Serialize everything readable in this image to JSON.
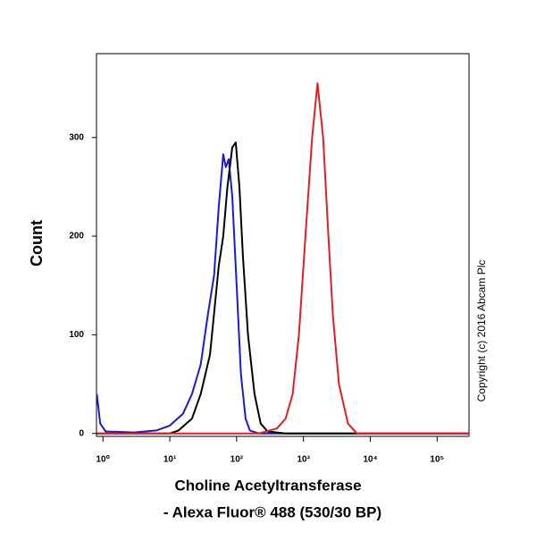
{
  "chart_data": {
    "type": "line",
    "xlabel": [
      "Choline Acetyltransferase",
      "- Alexa Fluor® 488 (530/30 BP)"
    ],
    "ylabel": "Count",
    "annotation": "Copyright (c) 2016 Abcam Plc",
    "xscale": "log",
    "xlim": [
      0.8,
      300000
    ],
    "ylim": [
      -3,
      385
    ],
    "xticks": [
      {
        "value": 1,
        "label": "10⁰"
      },
      {
        "value": 10,
        "label": "10¹"
      },
      {
        "value": 100,
        "label": "10²"
      },
      {
        "value": 1000,
        "label": "10³"
      },
      {
        "value": 10000,
        "label": "10⁴"
      },
      {
        "value": 100000,
        "label": "10⁵"
      }
    ],
    "yticks": [
      0,
      100,
      200,
      300
    ],
    "series": [
      {
        "color": "#1a1adc",
        "x": [
          0.81,
          0.91,
          1.1,
          2.9,
          6.3,
          10,
          15.8,
          21.5,
          29,
          37,
          46,
          54,
          63,
          69,
          76,
          86,
          100,
          116,
          136,
          158,
          215,
          300000
        ],
        "values": [
          40,
          10,
          2,
          1,
          3,
          8,
          20,
          40,
          70,
          120,
          160,
          230,
          283,
          270,
          278,
          240,
          150,
          60,
          15,
          3,
          0,
          0
        ]
      },
      {
        "color": "#000000",
        "x": [
          0.81,
          10,
          13.5,
          21.5,
          29,
          40,
          54,
          63,
          73,
          86,
          97,
          110,
          124,
          148,
          185,
          229,
          291,
          540,
          300000
        ],
        "values": [
          0,
          0,
          3,
          15,
          40,
          80,
          170,
          200,
          250,
          290,
          295,
          250,
          180,
          100,
          40,
          10,
          2,
          0,
          0
        ]
      },
      {
        "color": "#e02020",
        "x": [
          0.81,
          215,
          400,
          540,
          690,
          855,
          1070,
          1350,
          1620,
          1970,
          2360,
          2750,
          3400,
          4640,
          6300,
          300000
        ],
        "values": [
          0,
          0,
          5,
          15,
          40,
          100,
          200,
          300,
          355,
          300,
          200,
          120,
          50,
          10,
          0,
          0
        ]
      }
    ]
  }
}
